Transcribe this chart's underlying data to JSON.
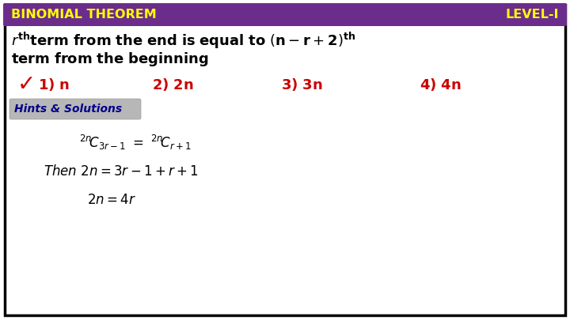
{
  "bg_color": "#ffffff",
  "border_color": "#000000",
  "header_bg": "#6b2d8b",
  "header_text_left": "BINOMIAL THEOREM",
  "header_text_right": "LEVEL-I",
  "header_text_color": "#ffff00",
  "options_color": "#cc0000",
  "checkmark_color": "#cc0000",
  "hints_box_bg": "#b0b0b0",
  "hints_text": "Hints & Solutions",
  "hints_text_color": "#00008b",
  "formula_color": "#000000",
  "header_fontsize": 11.5,
  "question_fontsize": 13,
  "option_fontsize": 13,
  "hints_fontsize": 10,
  "formula_fontsize": 12
}
